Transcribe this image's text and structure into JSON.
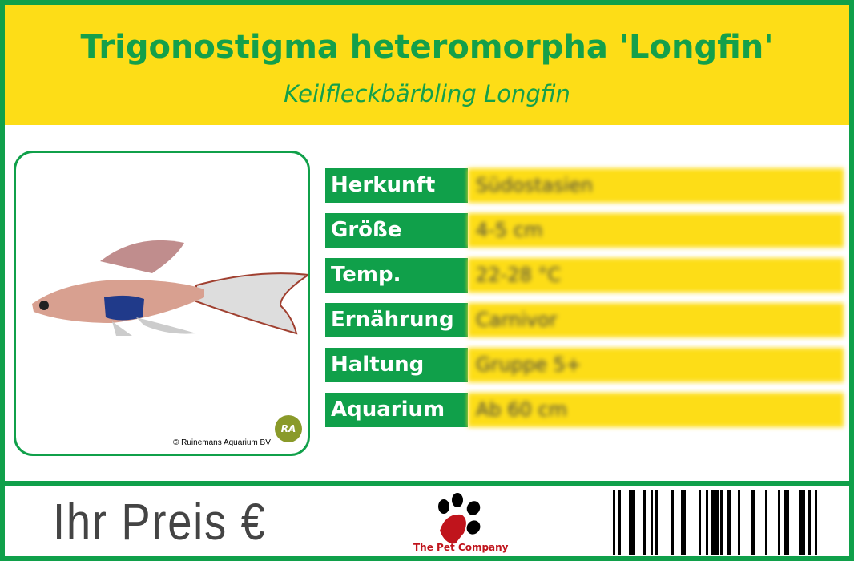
{
  "header": {
    "title": "Trigonostigma heteromorpha 'Longfin'",
    "subtitle": "Keilfleckbärbling Longfin"
  },
  "photo": {
    "credit": "© Ruinemans Aquarium BV",
    "badge": "RA"
  },
  "details": [
    {
      "label": "Herkunft",
      "value": "Südostasien"
    },
    {
      "label": "Größe",
      "value": "4-5 cm"
    },
    {
      "label": "Temp.",
      "value": "22-28 °C"
    },
    {
      "label": "Ernährung",
      "value": "Carnivor"
    },
    {
      "label": "Haltung",
      "value": "Gruppe 5+"
    },
    {
      "label": "Aquarium",
      "value": "Ab 60 cm"
    }
  ],
  "footer": {
    "price_label": "Ihr Preis €",
    "logo_text": "The Pet Company"
  },
  "colors": {
    "green": "#10a04a",
    "yellow": "#fddd17",
    "logo_red": "#c0141c"
  }
}
